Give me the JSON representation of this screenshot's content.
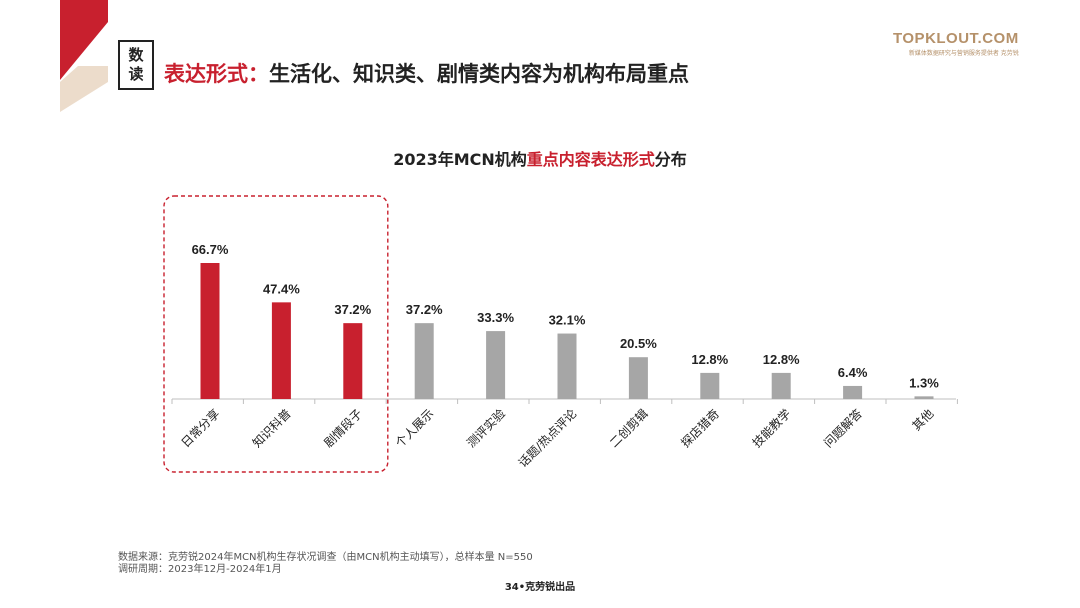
{
  "badge": {
    "line1": "数",
    "line2": "读"
  },
  "headline": {
    "accent": "表达形式：",
    "rest": "生活化、知识类、剧情类内容为机构布局重点"
  },
  "brand": {
    "name": "TOPKLOUT.COM",
    "sub": "新媒体数据研究与营销服务提供者 克劳锐"
  },
  "colors": {
    "highlight": "#c8202e",
    "neutral": "#a6a6a6",
    "accent_text": "#c8202e",
    "brand": "#b5916a"
  },
  "chart_data": {
    "type": "bar",
    "title": "2023年MCN机构重点内容表达形式分布",
    "title_parts": {
      "pre": "2023年MCN机构",
      "accent": "重点内容表达形式",
      "post": "分布"
    },
    "categories": [
      "日常分享",
      "知识科普",
      "剧情段子",
      "个人展示",
      "测评实验",
      "话题/热点评论",
      "二创剪辑",
      "探店猎奇",
      "技能教学",
      "问题解答",
      "其他"
    ],
    "values": [
      66.7,
      47.4,
      37.2,
      37.2,
      33.3,
      32.1,
      20.5,
      12.8,
      12.8,
      6.4,
      1.3
    ],
    "labels": [
      "66.7%",
      "47.4%",
      "37.2%",
      "37.2%",
      "33.3%",
      "32.1%",
      "20.5%",
      "12.8%",
      "12.8%",
      "6.4%",
      "1.3%"
    ],
    "highlighted": [
      true,
      true,
      true,
      false,
      false,
      false,
      false,
      false,
      false,
      false,
      false
    ],
    "unit": "%",
    "ylim": [
      0,
      70
    ],
    "xlabel": "",
    "ylabel": "",
    "grid": false
  },
  "footnote": {
    "source": "数据来源：克劳锐2024年MCN机构生存状况调查（由MCN机构主动填写），总样本量 N=550",
    "period": "调研周期：2023年12月-2024年1月"
  },
  "page": {
    "label": "34•克劳锐出品"
  }
}
